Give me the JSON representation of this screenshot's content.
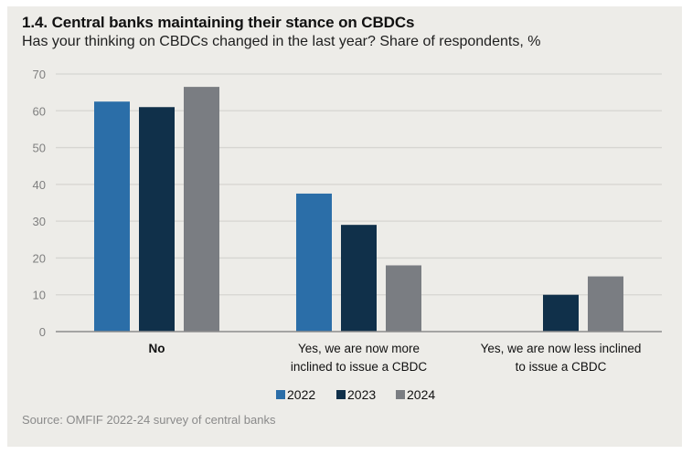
{
  "header": {
    "title": "1.4. Central banks maintaining their stance on CBDCs",
    "subtitle": "Has your thinking on CBDCs changed in the last year? Share of respondents, %"
  },
  "footer": {
    "source": "Source: OMFIF 2022-24 survey of central banks"
  },
  "colors": {
    "2022": "#2b6ea8",
    "2023": "#10304a",
    "2024": "#7a7d82",
    "background": "#edece8",
    "grid": "#d6d5d1",
    "axis": "#8c8c8c",
    "tick_text": "#7f7f7f"
  },
  "chart_data": {
    "type": "bar",
    "title": "1.4. Central banks maintaining their stance on CBDCs",
    "subtitle": "Has your thinking on CBDCs changed in the last year? Share of respondents, %",
    "xlabel": "",
    "ylabel": "",
    "ylim": [
      0,
      70
    ],
    "yticks": [
      0,
      10,
      20,
      30,
      40,
      50,
      60,
      70
    ],
    "grid": true,
    "legend_position": "bottom-center",
    "categories": [
      [
        "No"
      ],
      [
        "Yes, we are now more",
        "inclined to issue a CBDC"
      ],
      [
        "Yes, we are now less inclined",
        "to issue a CBDC"
      ]
    ],
    "series": [
      {
        "name": "2022",
        "values": [
          62.5,
          37.5,
          0
        ]
      },
      {
        "name": "2023",
        "values": [
          61,
          29,
          10
        ]
      },
      {
        "name": "2024",
        "values": [
          66.5,
          18,
          15
        ]
      }
    ]
  }
}
